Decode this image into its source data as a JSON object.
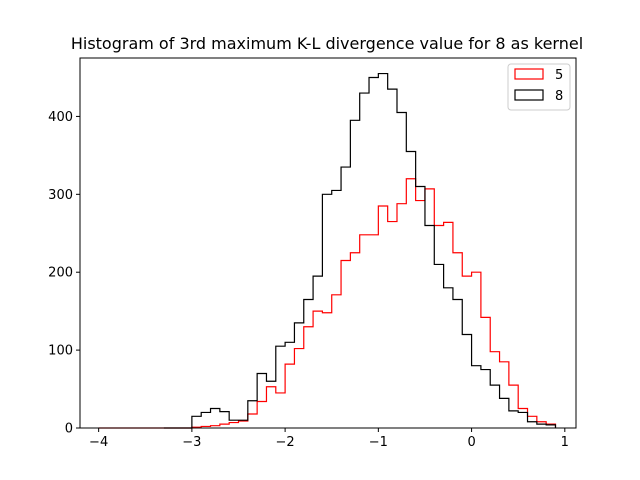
{
  "chart_data": {
    "type": "histogram",
    "title": "Histogram of 3rd maximum K-L divergence value for 8 as kernel",
    "xlabel": "",
    "ylabel": "",
    "xlim": [
      -4.2,
      1.12
    ],
    "ylim": [
      0,
      475
    ],
    "xticks": [
      -4,
      -3,
      -2,
      -1,
      0,
      1
    ],
    "xtick_labels": [
      "−4",
      "−3",
      "−2",
      "−1",
      "0",
      "1"
    ],
    "yticks": [
      0,
      100,
      200,
      300,
      400
    ],
    "ytick_labels": [
      "0",
      "100",
      "200",
      "300",
      "400"
    ],
    "grid": false,
    "legend_position": "top-right",
    "bin_edges": [
      -3.0,
      -2.9,
      -2.8,
      -2.7,
      -2.6,
      -2.5,
      -2.4,
      -2.3,
      -2.2,
      -2.1,
      -2.0,
      -1.9,
      -1.8,
      -1.7,
      -1.6,
      -1.5,
      -1.4,
      -1.3,
      -1.2,
      -1.1,
      -1.0,
      -0.9,
      -0.8,
      -0.7,
      -0.6,
      -0.5,
      -0.4,
      -0.3,
      -0.2,
      -0.1,
      0.0,
      0.1,
      0.2,
      0.3,
      0.4,
      0.5,
      0.6,
      0.7,
      0.8,
      0.9
    ],
    "series": [
      {
        "name": "5",
        "color": "#ff0000",
        "counts": [
          1,
          2,
          3,
          5,
          7,
          9,
          18,
          34,
          53,
          45,
          82,
          102,
          130,
          150,
          148,
          171,
          215,
          225,
          248,
          248,
          285,
          265,
          288,
          320,
          292,
          307,
          260,
          264,
          225,
          195,
          200,
          142,
          98,
          85,
          55,
          25,
          15,
          8,
          5
        ]
      },
      {
        "name": "8",
        "color": "#000000",
        "counts": [
          15,
          20,
          25,
          21,
          10,
          10,
          35,
          70,
          60,
          105,
          110,
          135,
          165,
          195,
          300,
          305,
          335,
          395,
          430,
          450,
          455,
          435,
          405,
          355,
          310,
          260,
          210,
          180,
          165,
          120,
          80,
          75,
          55,
          38,
          22,
          20,
          8,
          5,
          4
        ]
      }
    ],
    "series_start": [
      -4.0,
      -3.3
    ]
  }
}
